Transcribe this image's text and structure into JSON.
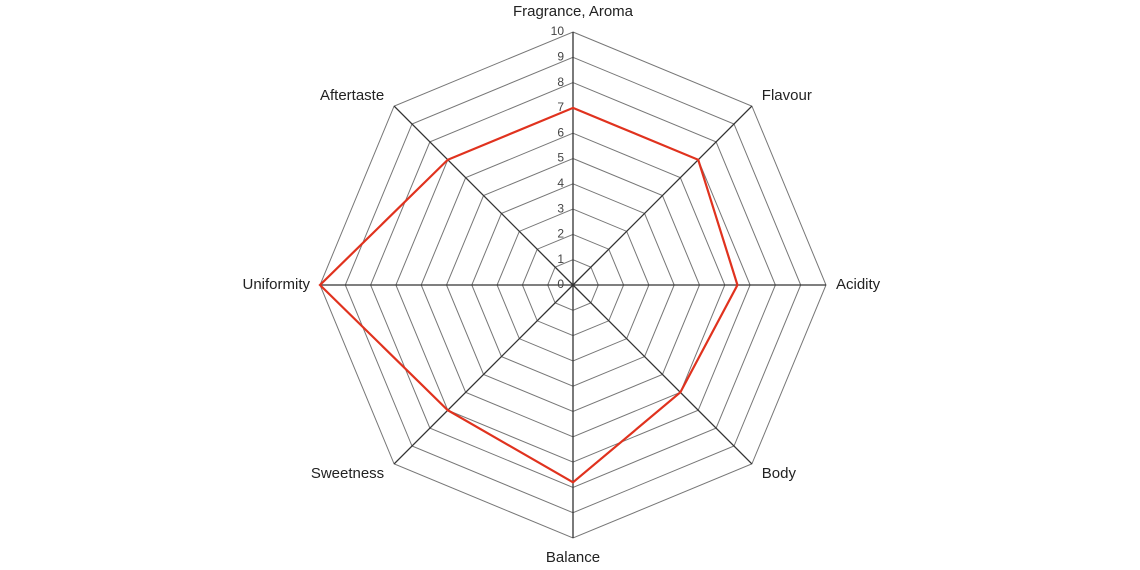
{
  "chart_data": {
    "type": "radar",
    "categories": [
      "Fragrance, Aroma",
      "Flavour",
      "Acidity",
      "Body",
      "Balance",
      "Sweetness",
      "Uniformity",
      "Aftertaste"
    ],
    "values": [
      7,
      7,
      6.5,
      6,
      7.8,
      7,
      10,
      7
    ],
    "color": "#e0321e",
    "ylim": [
      0,
      10
    ],
    "yticks": [
      0,
      1,
      2,
      3,
      4,
      5,
      6,
      7,
      8,
      9,
      10
    ],
    "grid": true
  }
}
